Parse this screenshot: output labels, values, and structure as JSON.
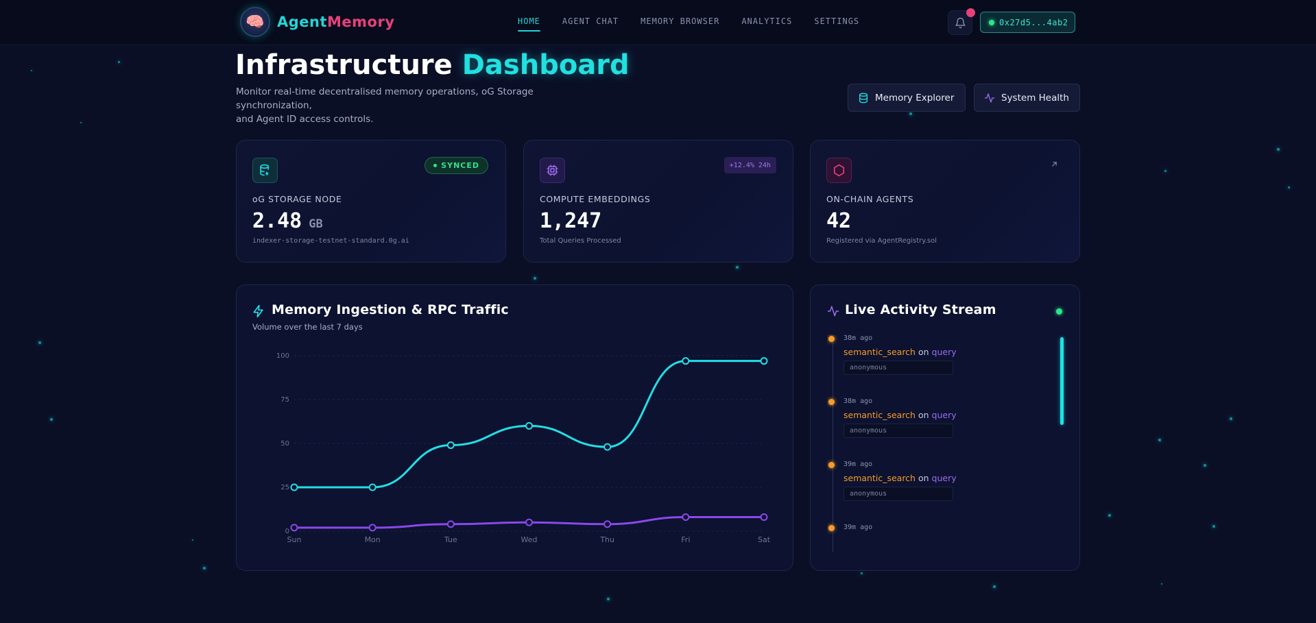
{
  "brand": {
    "name_a": "Agent",
    "name_b": "Memory",
    "icon": "brain-icon"
  },
  "nav": {
    "links": [
      "HOME",
      "AGENT CHAT",
      "MEMORY BROWSER",
      "ANALYTICS",
      "SETTINGS"
    ],
    "active": "HOME",
    "wallet": "0x27d5...4ab2"
  },
  "header": {
    "title_a": "Infrastructure",
    "title_b": "Dashboard",
    "subtitle_line1": "Monitor real-time decentralised memory operations, oG Storage synchronization,",
    "subtitle_line2": "and Agent ID access controls.",
    "btn_explorer": "Memory Explorer",
    "btn_health": "System Health"
  },
  "cards": {
    "storage": {
      "label": "oG STORAGE NODE",
      "value": "2.48",
      "unit": "GB",
      "foot": "indexer-storage-testnet-standard.0g.ai",
      "badge": "SYNCED"
    },
    "compute": {
      "label": "COMPUTE EMBEDDINGS",
      "value": "1,247",
      "foot": "Total Queries Processed",
      "badge": "+12.4% 24h"
    },
    "agents": {
      "label": "ON-CHAIN AGENTS",
      "value": "42",
      "foot": "Registered via AgentRegistry.sol"
    }
  },
  "chart_panel": {
    "title": "Memory Ingestion & RPC Traffic",
    "subtitle": "Volume over the last 7 days"
  },
  "chart_data": {
    "type": "line",
    "categories": [
      "Sun",
      "Mon",
      "Tue",
      "Wed",
      "Thu",
      "Fri",
      "Sat"
    ],
    "yticks": [
      "0",
      "25",
      "50",
      "75",
      "100"
    ],
    "ylim": [
      0,
      100
    ],
    "series": [
      {
        "values": [
          25,
          25,
          49,
          60,
          48,
          97,
          97
        ],
        "color": "#22dfe6"
      },
      {
        "values": [
          2,
          2,
          4,
          5,
          4,
          8,
          8
        ],
        "color": "#8a48ea"
      }
    ],
    "grid": true
  },
  "activity": {
    "title": "Live Activity Stream",
    "items": [
      {
        "time": "38m ago",
        "fn": "semantic_search",
        "on": "on",
        "target": "query",
        "who": "anonymous"
      },
      {
        "time": "38m ago",
        "fn": "semantic_search",
        "on": "on",
        "target": "query",
        "who": "anonymous"
      },
      {
        "time": "39m ago",
        "fn": "semantic_search",
        "on": "on",
        "target": "query",
        "who": "anonymous"
      },
      {
        "time": "39m ago",
        "fn": "",
        "on": "",
        "target": "",
        "who": ""
      }
    ]
  }
}
